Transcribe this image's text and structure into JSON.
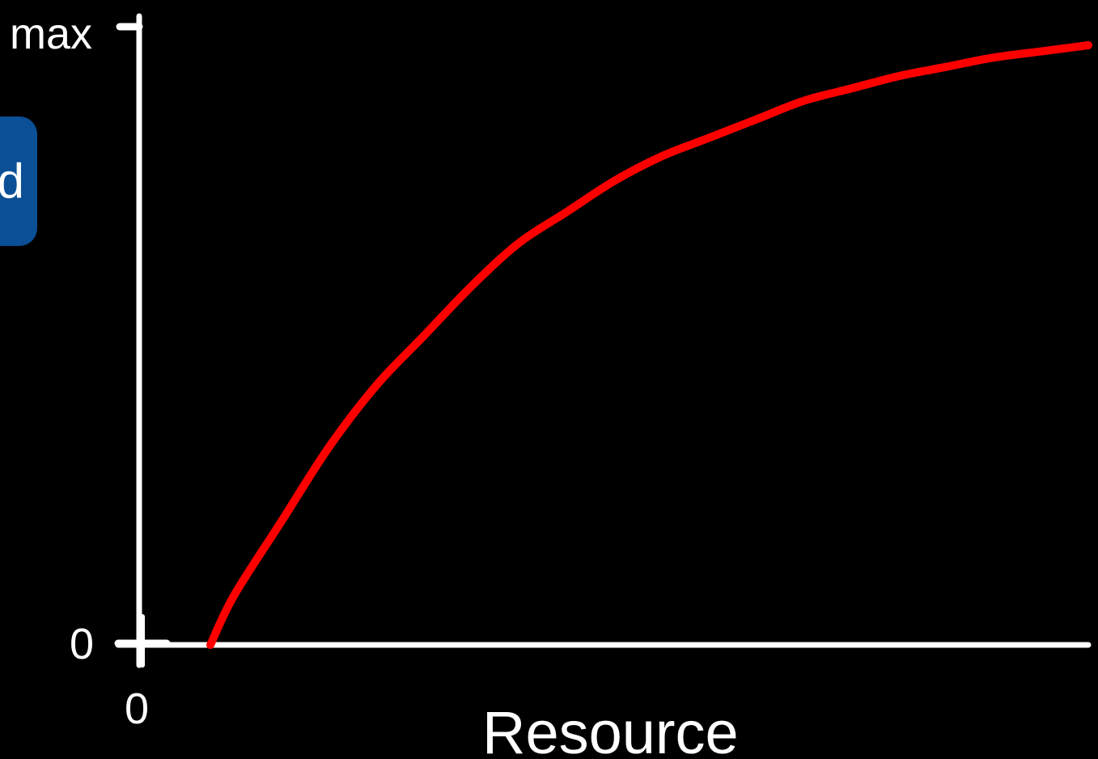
{
  "side_tab": {
    "label": "d"
  },
  "chart_data": {
    "type": "line",
    "title": "",
    "xlabel": "Resource",
    "ylabel": "",
    "x_ticks": [
      "0"
    ],
    "y_ticks": [
      "0",
      "max"
    ],
    "xlim": [
      0,
      1
    ],
    "ylim": [
      0,
      1
    ],
    "grid": false,
    "series": [
      {
        "color": "#ff0000",
        "x": [
          0.075,
          0.1,
          0.15,
          0.2,
          0.25,
          0.3,
          0.35,
          0.4,
          0.45,
          0.5,
          0.55,
          0.6,
          0.65,
          0.7,
          0.75,
          0.8,
          0.85,
          0.9,
          0.95,
          1.0
        ],
        "y": [
          0.0,
          0.08,
          0.2,
          0.32,
          0.42,
          0.5,
          0.58,
          0.65,
          0.7,
          0.75,
          0.79,
          0.82,
          0.85,
          0.88,
          0.9,
          0.92,
          0.935,
          0.95,
          0.96,
          0.97
        ]
      }
    ],
    "axis_color": "#ffffff"
  }
}
